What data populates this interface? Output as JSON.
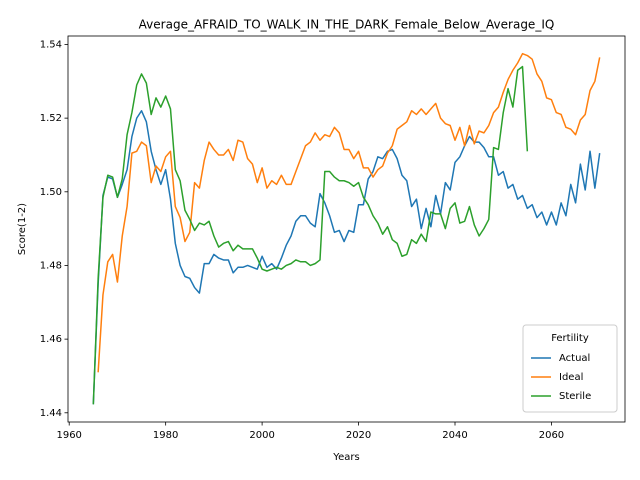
{
  "chart_data": {
    "type": "line",
    "title": "Average_AFRAID_TO_WALK_IN_THE_DARK_Female_Below_Average_IQ",
    "xlabel": "Years",
    "ylabel": "Score(1-2)",
    "x": [
      1965,
      1966,
      1967,
      1968,
      1969,
      1970,
      1971,
      1972,
      1973,
      1974,
      1975,
      1976,
      1977,
      1978,
      1979,
      1980,
      1981,
      1982,
      1983,
      1984,
      1985,
      1986,
      1987,
      1988,
      1989,
      1990,
      1991,
      1992,
      1993,
      1994,
      1995,
      1996,
      1997,
      1998,
      1999,
      2000,
      2001,
      2002,
      2003,
      2004,
      2005,
      2006,
      2007,
      2008,
      2009,
      2010,
      2011,
      2012,
      2013,
      2014,
      2015,
      2016,
      2017,
      2018,
      2019,
      2020,
      2021,
      2022,
      2023,
      2024,
      2025,
      2026,
      2027,
      2028,
      2029,
      2030,
      2031,
      2032,
      2033,
      2034,
      2035,
      2036,
      2037,
      2038,
      2039,
      2040,
      2041,
      2042,
      2043,
      2044,
      2045,
      2046,
      2047,
      2048,
      2049,
      2050,
      2051,
      2052,
      2053,
      2054,
      2055,
      2056,
      2057,
      2058,
      2059,
      2060,
      2061,
      2062,
      2063,
      2064,
      2065,
      2066,
      2067,
      2068,
      2069,
      2070
    ],
    "series": [
      {
        "name": "Actual",
        "color": "#1f77b4",
        "values": [
          1.4423,
          1.475,
          1.499,
          1.504,
          1.5035,
          1.4985,
          1.502,
          1.506,
          1.515,
          1.52,
          1.522,
          1.519,
          1.511,
          1.506,
          1.502,
          1.506,
          1.498,
          1.486,
          1.48,
          1.477,
          1.4765,
          1.474,
          1.4725,
          1.4805,
          1.4805,
          1.483,
          1.482,
          1.4815,
          1.4815,
          1.478,
          1.4795,
          1.4795,
          1.48,
          1.4795,
          1.479,
          1.4825,
          1.4795,
          1.4805,
          1.479,
          1.482,
          1.4855,
          1.488,
          1.492,
          1.4935,
          1.4935,
          1.4915,
          1.4905,
          1.4995,
          1.497,
          1.4935,
          1.489,
          1.4895,
          1.4865,
          1.4895,
          1.489,
          1.4965,
          1.4965,
          1.5035,
          1.5055,
          1.5095,
          1.509,
          1.511,
          1.5115,
          1.509,
          1.5045,
          1.503,
          1.496,
          1.498,
          1.49,
          1.4955,
          1.4905,
          1.499,
          1.494,
          1.5025,
          1.5005,
          1.508,
          1.5095,
          1.5125,
          1.515,
          1.5135,
          1.5135,
          1.512,
          1.5095,
          1.5095,
          1.5045,
          1.5055,
          1.501,
          1.502,
          1.498,
          1.499,
          1.4955,
          1.4965,
          1.493,
          1.4945,
          1.491,
          1.4945,
          1.491,
          1.497,
          1.4935,
          1.502,
          1.497,
          1.5075,
          1.5005,
          1.511,
          1.501,
          1.5105
        ]
      },
      {
        "name": "Ideal",
        "color": "#ff7f0e",
        "values": [
          null,
          1.451,
          1.472,
          1.481,
          1.483,
          1.4755,
          1.488,
          1.496,
          1.5105,
          1.511,
          1.5135,
          1.5125,
          1.5025,
          1.507,
          1.5055,
          1.5095,
          1.511,
          1.496,
          1.493,
          1.4865,
          1.489,
          1.5025,
          1.501,
          1.5085,
          1.5135,
          1.5115,
          1.51,
          1.51,
          1.5115,
          1.5085,
          1.514,
          1.5135,
          1.509,
          1.5075,
          1.5025,
          1.5065,
          1.501,
          1.503,
          1.502,
          1.5045,
          1.502,
          1.502,
          1.5055,
          1.509,
          1.5125,
          1.5135,
          1.516,
          1.514,
          1.5155,
          1.515,
          1.5175,
          1.516,
          1.5115,
          1.5115,
          1.509,
          1.511,
          1.5065,
          1.5065,
          1.504,
          1.506,
          1.507,
          1.5105,
          1.5125,
          1.517,
          1.518,
          1.519,
          1.522,
          1.521,
          1.5225,
          1.521,
          1.5225,
          1.524,
          1.52,
          1.5185,
          1.518,
          1.514,
          1.5175,
          1.5125,
          1.518,
          1.513,
          1.5165,
          1.516,
          1.518,
          1.5215,
          1.523,
          1.527,
          1.5305,
          1.533,
          1.535,
          1.5375,
          1.537,
          1.536,
          1.532,
          1.53,
          1.5255,
          1.525,
          1.5215,
          1.521,
          1.5175,
          1.517,
          1.5155,
          1.5195,
          1.521,
          1.5275,
          1.53,
          1.5365
        ]
      },
      {
        "name": "Sterile",
        "color": "#2ca02c",
        "values": [
          1.4423,
          1.4765,
          1.4985,
          1.5045,
          1.504,
          1.4985,
          1.5035,
          1.5155,
          1.5215,
          1.529,
          1.532,
          1.5295,
          1.521,
          1.5255,
          1.523,
          1.526,
          1.5225,
          1.506,
          1.503,
          1.495,
          1.4925,
          1.4895,
          1.4915,
          1.491,
          1.492,
          1.488,
          1.485,
          1.486,
          1.4865,
          1.484,
          1.4855,
          1.4845,
          1.4845,
          1.4845,
          1.482,
          1.479,
          1.4785,
          1.479,
          1.4795,
          1.479,
          1.48,
          1.4805,
          1.4815,
          1.481,
          1.481,
          1.48,
          1.4805,
          1.4815,
          1.5055,
          1.5055,
          1.504,
          1.503,
          1.503,
          1.5025,
          1.5015,
          1.5025,
          1.4985,
          1.4965,
          1.4935,
          1.4915,
          1.4885,
          1.4905,
          1.487,
          1.486,
          1.4825,
          1.483,
          1.487,
          1.486,
          1.4885,
          1.4865,
          1.4945,
          1.494,
          1.494,
          1.49,
          1.4955,
          1.497,
          1.4915,
          1.492,
          1.496,
          1.491,
          1.488,
          1.49,
          1.4925,
          1.512,
          1.5115,
          1.5215,
          1.528,
          1.523,
          1.533,
          1.534,
          1.511,
          null,
          null,
          null,
          null,
          null,
          null,
          null,
          null,
          null,
          null,
          null,
          null,
          null,
          null,
          null
        ]
      }
    ],
    "xlim": [
      1959.75,
      2075.25
    ],
    "xticks": [
      1960,
      1980,
      2000,
      2020,
      2040,
      2060
    ],
    "ylim": [
      1.4375,
      1.5423
    ],
    "yticks": [
      1.44,
      1.46,
      1.48,
      {
        "value": 1.5,
        "label": "1.50"
      },
      1.52,
      1.54
    ],
    "legend": {
      "title": "Fertility",
      "loc": "lower right"
    }
  }
}
